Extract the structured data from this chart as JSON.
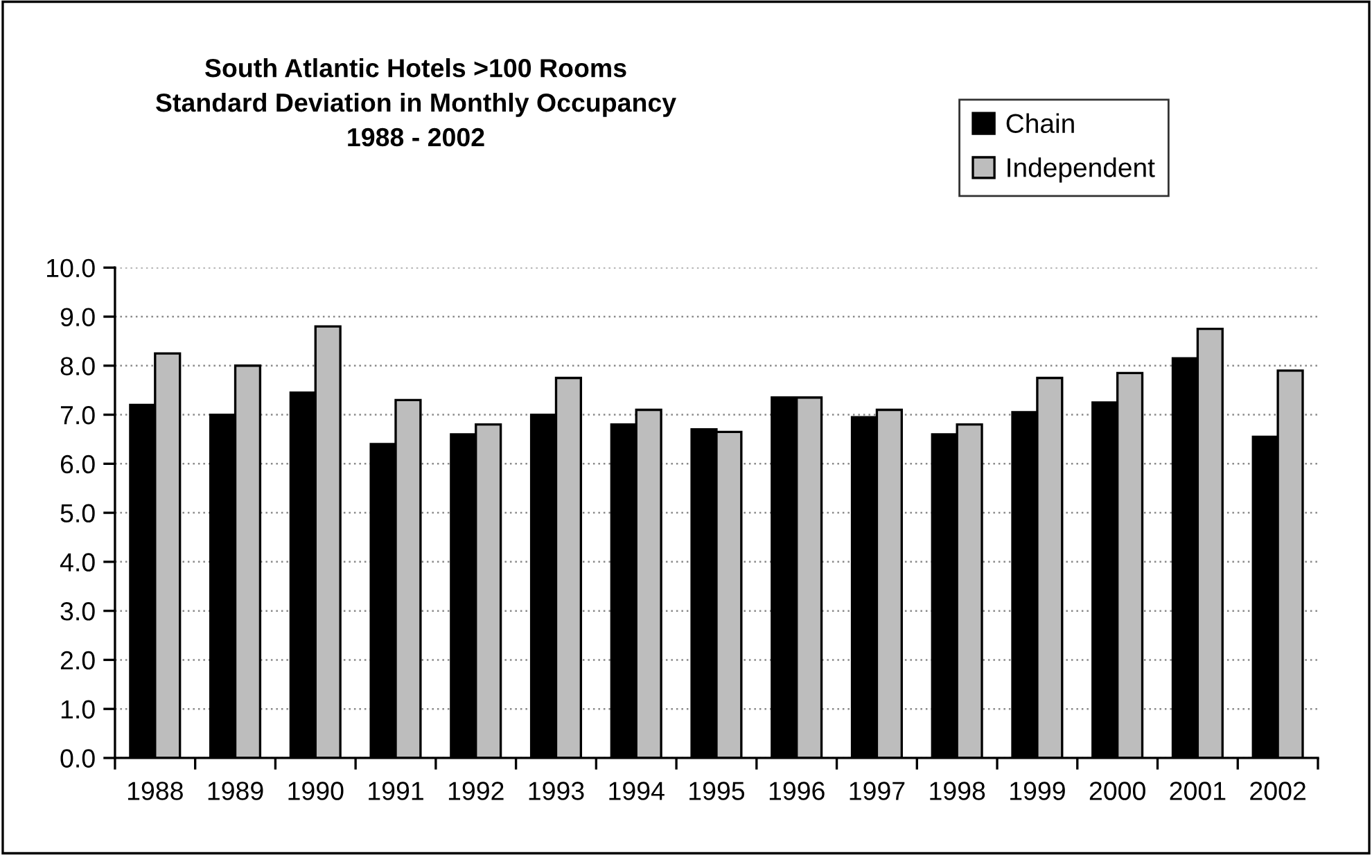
{
  "chart_data": {
    "type": "bar",
    "title": "South Atlantic Hotels >100 Rooms\nStandard Deviation in Monthly Occupancy\n1988 - 2002",
    "categories": [
      "1988",
      "1989",
      "1990",
      "1991",
      "1992",
      "1993",
      "1994",
      "1995",
      "1996",
      "1997",
      "1998",
      "1999",
      "2000",
      "2001",
      "2002"
    ],
    "series": [
      {
        "name": "Chain",
        "color": "#000000",
        "values": [
          7.2,
          7.0,
          7.45,
          6.4,
          6.6,
          7.0,
          6.8,
          6.7,
          7.35,
          6.95,
          6.6,
          7.05,
          7.25,
          8.15,
          6.55
        ]
      },
      {
        "name": "Independent",
        "color": "#bdbdbd",
        "values": [
          8.25,
          8.0,
          8.8,
          7.3,
          6.8,
          7.75,
          7.1,
          6.65,
          7.35,
          7.1,
          6.8,
          7.75,
          7.85,
          8.75,
          7.9
        ]
      }
    ],
    "ylim": [
      0,
      10
    ],
    "yticks": [
      {
        "value": 0,
        "label": "0.0"
      },
      {
        "value": 1,
        "label": "1.0"
      },
      {
        "value": 2,
        "label": "2.0"
      },
      {
        "value": 3,
        "label": "3.0"
      },
      {
        "value": 4,
        "label": "4.0"
      },
      {
        "value": 5,
        "label": "5.0"
      },
      {
        "value": 6,
        "label": "6.0"
      },
      {
        "value": 7,
        "label": "7.0"
      },
      {
        "value": 8,
        "label": "8.0"
      },
      {
        "value": 9,
        "label": "9.0"
      },
      {
        "value": 10,
        "label": "10.0"
      }
    ],
    "grid": "y",
    "legend": "top right"
  }
}
